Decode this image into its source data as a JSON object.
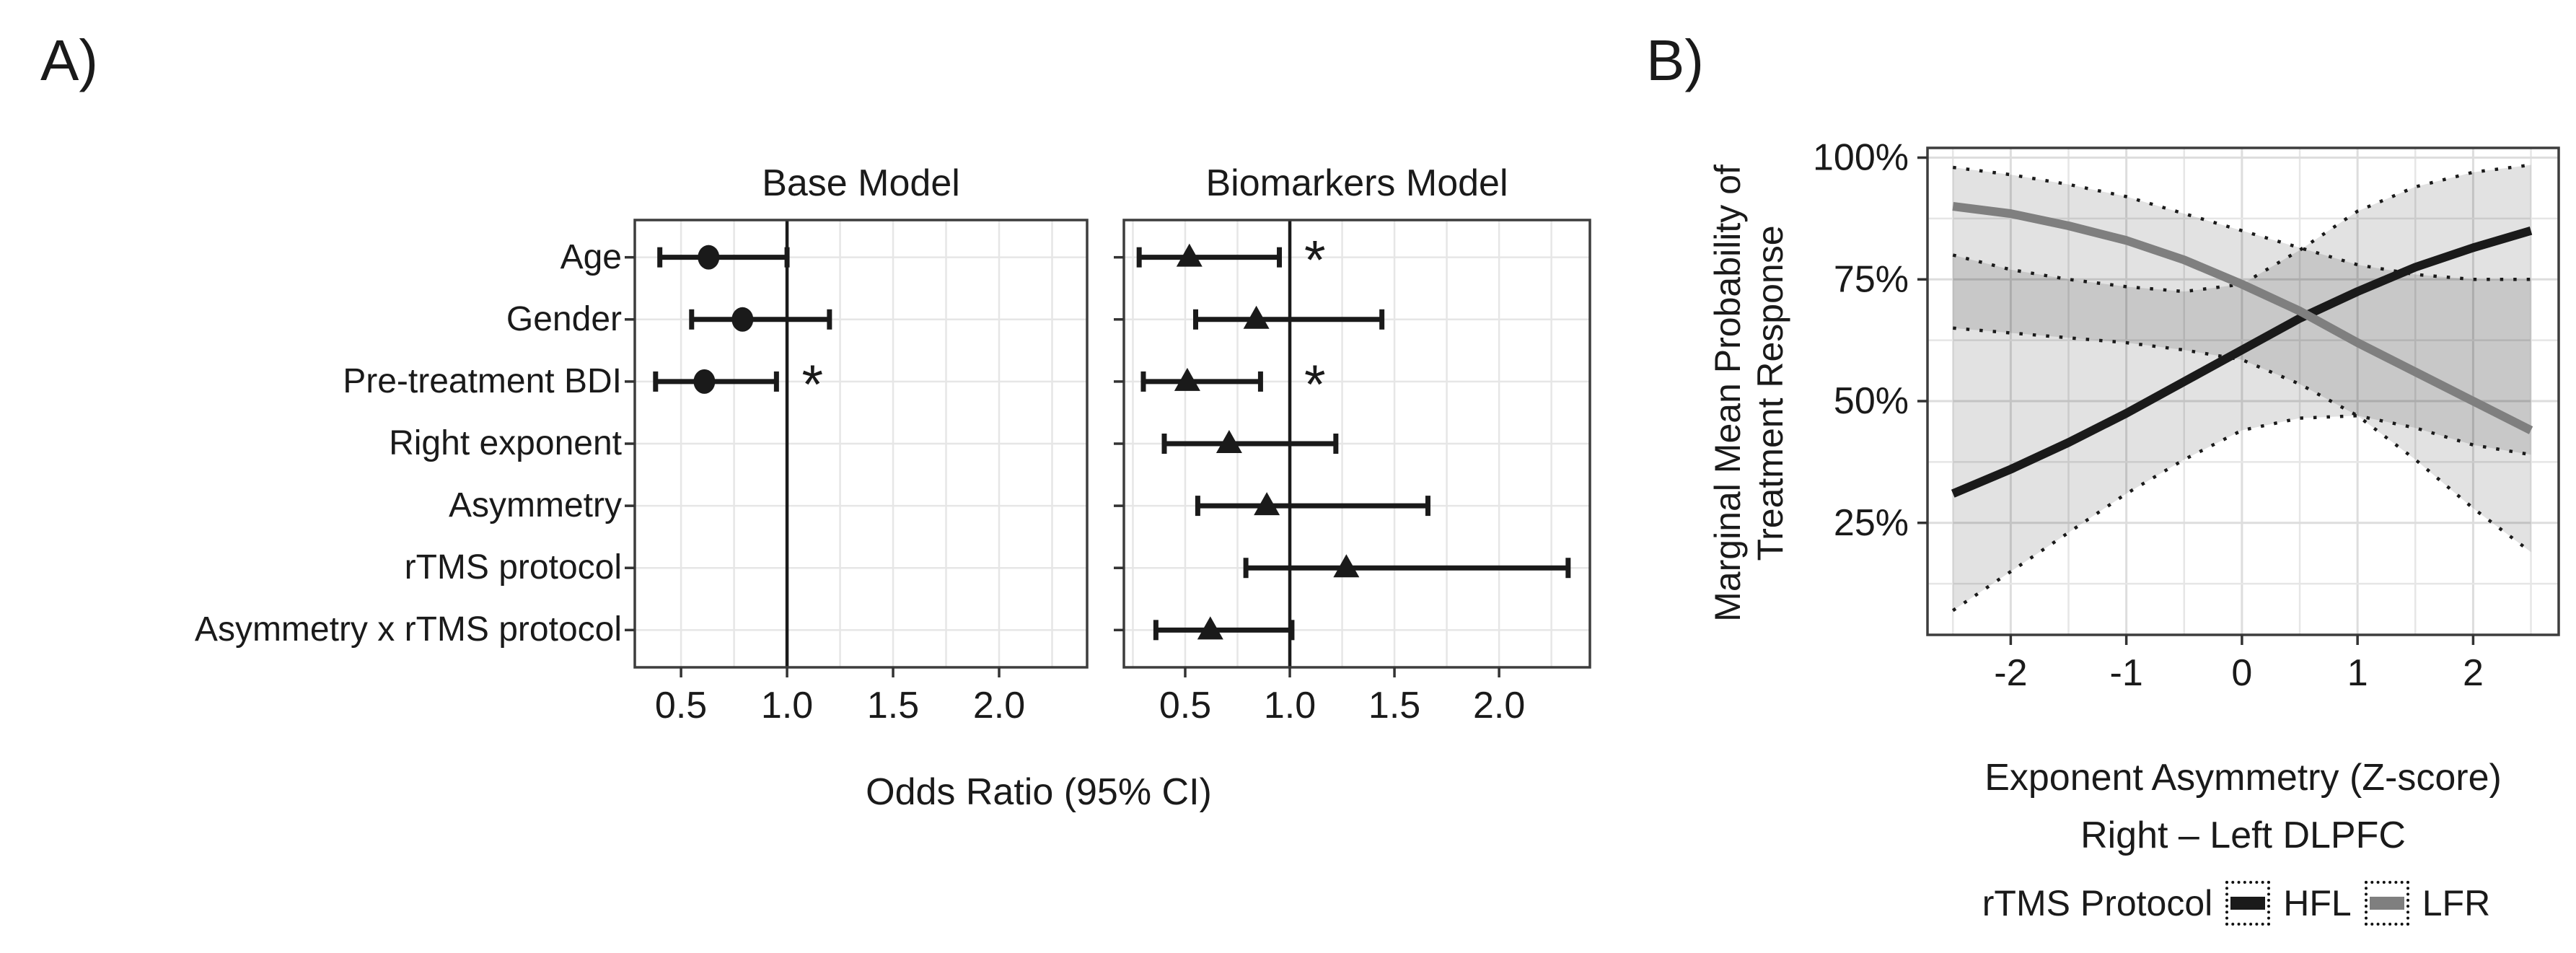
{
  "figure": {
    "panel_a_label": "A)",
    "panel_b_label": "B)"
  },
  "colors": {
    "black": "#1a1a1a",
    "hfl": "#1a1a1a",
    "lfr": "#7f7f7f",
    "frame": "#3d3d3d",
    "grid": "#e6e6e6",
    "grid_major": "#dddddd",
    "ribbon": "rgba(0,0,0,0.115)"
  },
  "chart_data": [
    {
      "type": "forest",
      "panel": "A",
      "titles": {
        "base": "Base Model",
        "biomarkers": "Biomarkers Model"
      },
      "xlabel": "Odds Ratio (95% CI)",
      "x_tick_values": [
        0.5,
        1.0,
        1.5,
        2.0
      ],
      "x_tick_labels": [
        "0.5",
        "1.0",
        "1.5",
        "2.0"
      ],
      "xlim_base": [
        0.282,
        2.415
      ],
      "xlim_biomarkers": [
        0.207,
        2.434
      ],
      "reference_line": 1.0,
      "rows": [
        "Age",
        "Gender",
        "Pre-treatment BDI",
        "Right exponent",
        "Asymmetry",
        "rTMS protocol",
        "Asymmetry x rTMS protocol"
      ],
      "sig_marker": "*",
      "sig_position_or": 1.12,
      "series": [
        {
          "name": "Base Model",
          "marker": "circle",
          "points": [
            {
              "row": "Age",
              "or": 0.63,
              "ci": [
                0.4,
                1.0
              ],
              "sig": false
            },
            {
              "row": "Gender",
              "or": 0.79,
              "ci": [
                0.55,
                1.2
              ],
              "sig": false
            },
            {
              "row": "Pre-treatment BDI",
              "or": 0.61,
              "ci": [
                0.38,
                0.95
              ],
              "sig": true
            }
          ]
        },
        {
          "name": "Biomarkers Model",
          "marker": "triangle",
          "points": [
            {
              "row": "Age",
              "or": 0.52,
              "ci": [
                0.28,
                0.95
              ],
              "sig": true
            },
            {
              "row": "Gender",
              "or": 0.84,
              "ci": [
                0.55,
                1.44
              ],
              "sig": false
            },
            {
              "row": "Pre-treatment BDI",
              "or": 0.51,
              "ci": [
                0.3,
                0.86
              ],
              "sig": true
            },
            {
              "row": "Right exponent",
              "or": 0.71,
              "ci": [
                0.4,
                1.22
              ],
              "sig": false
            },
            {
              "row": "Asymmetry",
              "or": 0.89,
              "ci": [
                0.56,
                1.66
              ],
              "sig": false
            },
            {
              "row": "rTMS protocol",
              "or": 1.27,
              "ci": [
                0.79,
                2.33
              ],
              "sig": false
            },
            {
              "row": "Asymmetry x rTMS protocol",
              "or": 0.62,
              "ci": [
                0.36,
                1.01
              ],
              "sig": false
            }
          ]
        }
      ]
    },
    {
      "type": "line",
      "panel": "B",
      "ylabel_lines": [
        "Marginal Mean Probability of",
        "Treatment Response"
      ],
      "xlabel_lines": [
        "Exponent Asymmetry (Z-score)",
        "Right – Left DLPFC"
      ],
      "legend_title": "rTMS Protocol",
      "x_tick_values": [
        -2,
        -1,
        0,
        1,
        2
      ],
      "x_tick_labels": [
        "-2",
        "-1",
        "0",
        "1",
        "2"
      ],
      "y_tick_values": [
        25,
        50,
        75,
        100
      ],
      "y_tick_labels": [
        "25%",
        "50%",
        "75%",
        "100%"
      ],
      "xlim": [
        -2.72,
        2.74
      ],
      "ylim": [
        2,
        102
      ],
      "grid_x_step": 0.5,
      "grid_y_step": 12.5,
      "x": [
        -2.5,
        -2.0,
        -1.5,
        -1.0,
        -0.5,
        0.0,
        0.5,
        1.0,
        1.5,
        2.0,
        2.5
      ],
      "series": [
        {
          "name": "HFL",
          "color_key": "hfl",
          "values": [
            31,
            36,
            41.5,
            47.5,
            54,
            60.5,
            67,
            72.5,
            77.5,
            81.5,
            85
          ],
          "upper": [
            80,
            77,
            75,
            73.5,
            72.5,
            74,
            81,
            89,
            94,
            97,
            98.5
          ],
          "lower": [
            7,
            15,
            23,
            31,
            38,
            44,
            46.5,
            47,
            44.5,
            41,
            39
          ]
        },
        {
          "name": "LFR",
          "color_key": "lfr",
          "values": [
            90,
            88.5,
            86,
            83,
            79,
            74,
            68.5,
            62,
            56,
            50,
            44
          ],
          "upper": [
            98,
            96.5,
            94.5,
            92,
            88.5,
            85,
            81.5,
            78,
            76,
            75,
            75
          ],
          "lower": [
            65,
            64,
            63,
            62,
            60.5,
            58.5,
            53.5,
            47,
            38,
            28,
            19
          ]
        }
      ]
    }
  ]
}
